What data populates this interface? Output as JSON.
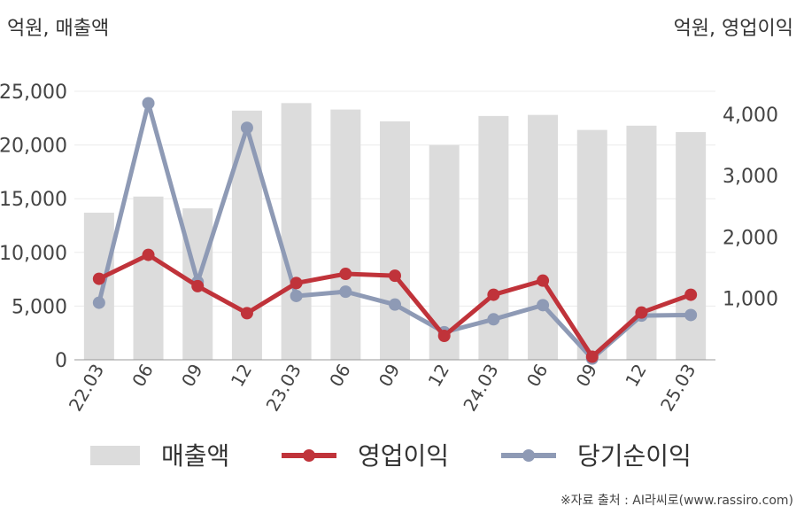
{
  "units": {
    "left": "억원, 매출액",
    "right": "억원, 영업이익"
  },
  "source_text": "※자료 출처 : AI라씨로(www.rassiro.com)",
  "colors": {
    "bars": "#dcdcdc",
    "operating_profit": "#c0333a",
    "net_income": "#8e9ab5"
  },
  "chart_data": {
    "type": "bar+line",
    "categories": [
      "22.03",
      "06",
      "09",
      "12",
      "23.03",
      "06",
      "09",
      "12",
      "24.03",
      "06",
      "09",
      "12",
      "25.03"
    ],
    "left_axis": {
      "ylim": [
        0,
        25000
      ],
      "ticks": [
        "0",
        "5,000",
        "10,000",
        "15,000",
        "20,000",
        "25,000"
      ]
    },
    "right_axis": {
      "ylim": [
        0,
        4375
      ],
      "ticks": [
        "1,000",
        "2,000",
        "3,000",
        "4,000"
      ]
    },
    "grid": "horizontal",
    "legend_position": "bottom",
    "series": [
      {
        "name": "매출액",
        "type": "bar",
        "axis": "left",
        "values": [
          13700,
          15200,
          14100,
          23200,
          23900,
          23300,
          22200,
          20000,
          22700,
          22800,
          21400,
          21800,
          21200
        ]
      },
      {
        "name": "영업이익",
        "type": "line",
        "axis": "right",
        "values": [
          1320,
          1710,
          1200,
          760,
          1250,
          1400,
          1370,
          390,
          1060,
          1290,
          50,
          770,
          1060
        ]
      },
      {
        "name": "당기순이익",
        "type": "line",
        "axis": "right",
        "values": [
          930,
          4180,
          1270,
          3780,
          1040,
          1110,
          900,
          450,
          660,
          890,
          20,
          720,
          730
        ]
      }
    ]
  }
}
